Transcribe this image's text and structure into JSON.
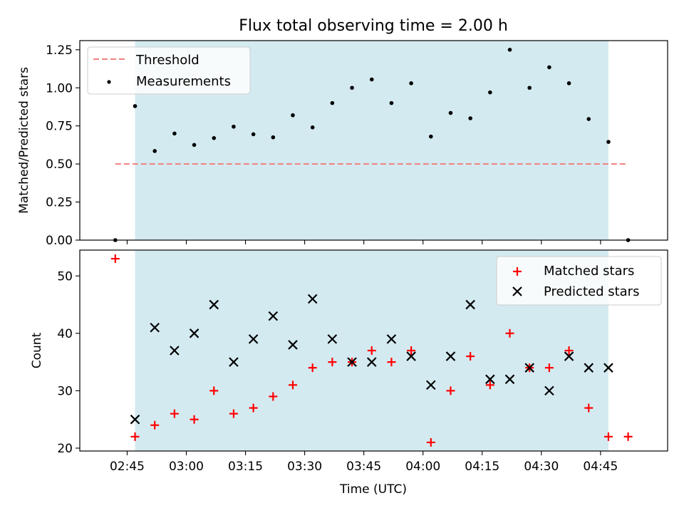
{
  "chart_data": [
    {
      "type": "scatter",
      "title": "Flux total observing time = 2.00 h",
      "ylabel": "Matched/Predicted stars",
      "xlabel": "",
      "x_ticks": [
        "02:45",
        "03:00",
        "03:15",
        "03:30",
        "03:45",
        "04:00",
        "04:15",
        "04:30",
        "04:45"
      ],
      "x_tick_minutes": [
        165,
        180,
        195,
        210,
        225,
        240,
        255,
        270,
        285
      ],
      "xlim_minutes": [
        153,
        302
      ],
      "ylim": [
        0,
        1.31
      ],
      "y_ticks": [
        "0.00",
        "0.25",
        "0.50",
        "0.75",
        "1.00",
        "1.25"
      ],
      "y_tick_values": [
        0,
        0.25,
        0.5,
        0.75,
        1.0,
        1.25
      ],
      "shaded_region_minutes": [
        167,
        287
      ],
      "shaded_color": "#d4eaf1",
      "threshold": {
        "label": "Threshold",
        "value": 0.5,
        "x_from": 162,
        "x_to": 292,
        "color": "#f08080"
      },
      "legend_placement": "top-left",
      "series": [
        {
          "name": "Measurements",
          "marker": "dot",
          "color": "#000000",
          "x": [
            162,
            167,
            172,
            177,
            182,
            187,
            192,
            197,
            202,
            207,
            212,
            217,
            222,
            227,
            232,
            237,
            242,
            247,
            252,
            257,
            262,
            267,
            272,
            277,
            282,
            287,
            292
          ],
          "y": [
            0.0,
            0.88,
            0.585,
            0.7,
            0.625,
            0.67,
            0.745,
            0.695,
            0.675,
            0.82,
            0.74,
            0.9,
            1.0,
            1.055,
            0.9,
            1.03,
            0.68,
            0.835,
            0.8,
            0.97,
            1.25,
            1.0,
            1.135,
            1.03,
            0.795,
            0.645,
            0.0
          ]
        }
      ]
    },
    {
      "type": "scatter",
      "title": "",
      "ylabel": "Count",
      "xlabel": "Time (UTC)",
      "x_ticks": [
        "02:45",
        "03:00",
        "03:15",
        "03:30",
        "03:45",
        "04:00",
        "04:15",
        "04:30",
        "04:45"
      ],
      "x_tick_minutes": [
        165,
        180,
        195,
        210,
        225,
        240,
        255,
        270,
        285
      ],
      "xlim_minutes": [
        153,
        302
      ],
      "ylim": [
        19.5,
        54.5
      ],
      "y_ticks": [
        "20",
        "30",
        "40",
        "50"
      ],
      "y_tick_values": [
        20,
        30,
        40,
        50
      ],
      "shaded_region_minutes": [
        167,
        287
      ],
      "shaded_color": "#d4eaf1",
      "legend_placement": "top-right",
      "series": [
        {
          "name": "Matched stars",
          "marker": "plus",
          "color": "#ff0000",
          "x": [
            162,
            167,
            172,
            177,
            182,
            187,
            192,
            197,
            202,
            207,
            212,
            217,
            222,
            227,
            232,
            237,
            242,
            247,
            252,
            257,
            262,
            267,
            272,
            277,
            282,
            287,
            292
          ],
          "y": [
            53,
            22,
            24,
            26,
            25,
            30,
            26,
            27,
            29,
            31,
            34,
            35,
            35,
            37,
            35,
            37,
            21,
            30,
            36,
            31,
            40,
            34,
            34,
            37,
            27,
            22,
            22
          ]
        },
        {
          "name": "Predicted stars",
          "marker": "x",
          "color": "#000000",
          "x": [
            167,
            172,
            177,
            182,
            187,
            192,
            197,
            202,
            207,
            212,
            217,
            222,
            227,
            232,
            237,
            242,
            247,
            252,
            257,
            262,
            267,
            272,
            277,
            282,
            287
          ],
          "y": [
            25,
            41,
            37,
            40,
            45,
            35,
            39,
            43,
            38,
            46,
            39,
            35,
            35,
            39,
            36,
            31,
            36,
            45,
            32,
            32,
            34,
            30,
            36,
            34,
            34
          ]
        }
      ]
    }
  ]
}
